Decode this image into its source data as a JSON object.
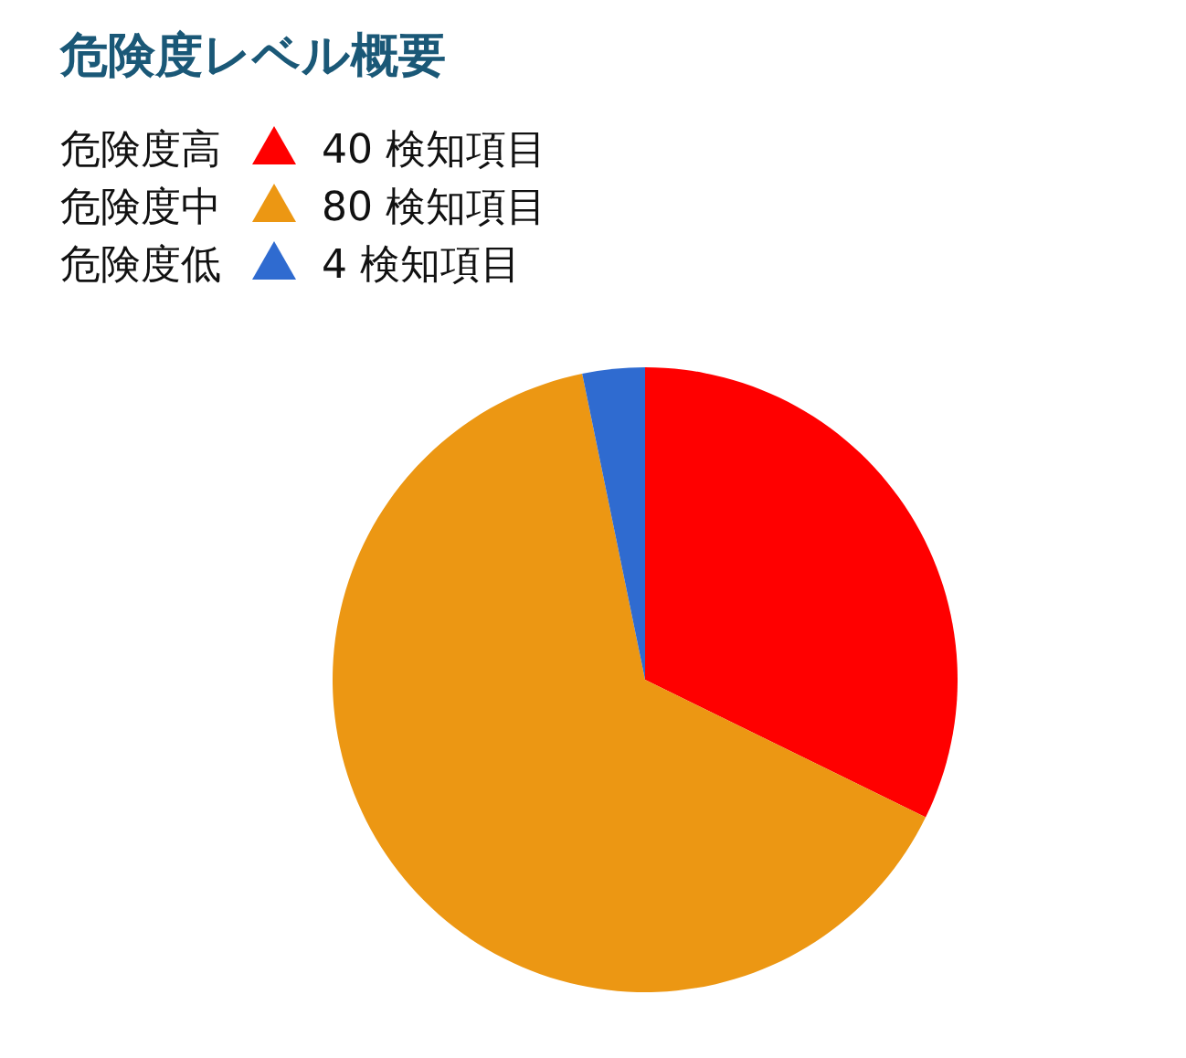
{
  "chart_data": {
    "type": "pie",
    "title": "危険度レベル概要",
    "categories": [
      "危険度高",
      "危険度中",
      "危険度低"
    ],
    "values": [
      40,
      80,
      4
    ],
    "colors": [
      "#ff0000",
      "#ec9713",
      "#2f6bd0"
    ],
    "value_labels": [
      "40 検知項目",
      "80 検知項目",
      "4 検知項目"
    ],
    "legend": "top"
  }
}
